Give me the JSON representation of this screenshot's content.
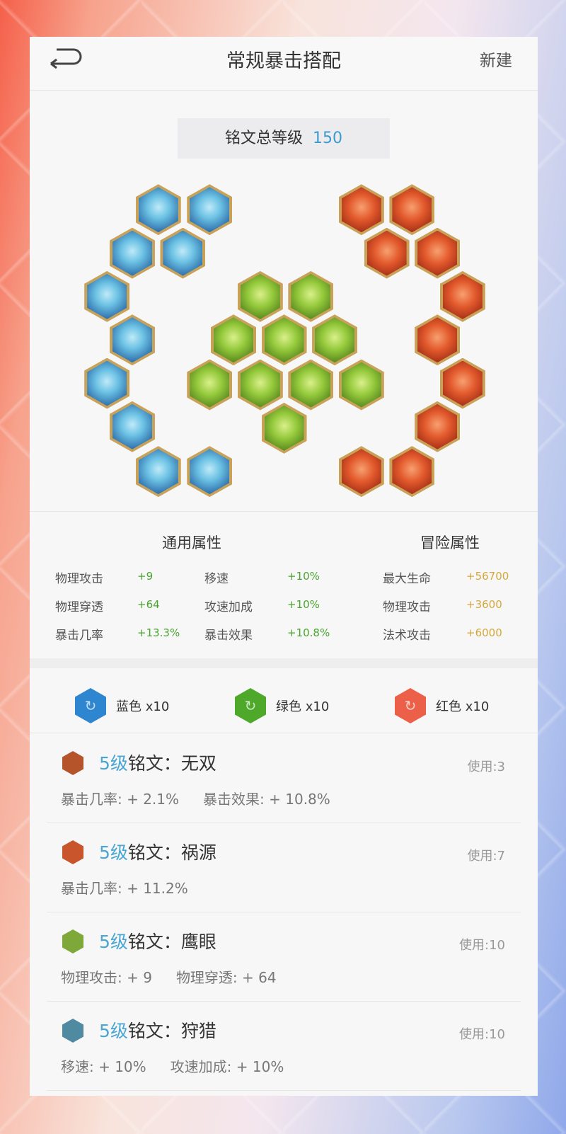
{
  "header": {
    "title": "常规暴击搭配",
    "new_label": "新建",
    "back_icon": "back-arrow-icon"
  },
  "total": {
    "label": "铭文总等级",
    "value": "150"
  },
  "board": {
    "blue_count": 10,
    "green_count": 10,
    "red_count": 10,
    "colors": {
      "blue": "#3b86c4",
      "green": "#7cb83a",
      "red": "#e05a36"
    }
  },
  "general": {
    "title": "通用属性",
    "rows": [
      {
        "l1": "物理攻击",
        "v1": "+9",
        "l2": "移速",
        "v2": "+10%"
      },
      {
        "l1": "物理穿透",
        "v1": "+64",
        "l2": "攻速加成",
        "v2": "+10%"
      },
      {
        "l1": "暴击几率",
        "v1": "+13.3%",
        "l2": "暴击效果",
        "v2": "+10.8%"
      }
    ]
  },
  "adventure": {
    "title": "冒险属性",
    "rows": [
      {
        "l": "最大生命",
        "v": "+56700"
      },
      {
        "l": "物理攻击",
        "v": "+3600"
      },
      {
        "l": "法术攻击",
        "v": "+6000"
      }
    ]
  },
  "color_counts": [
    {
      "label": "蓝色 x10",
      "color": "#2f86d0"
    },
    {
      "label": "绿色 x10",
      "color": "#4ea92a"
    },
    {
      "label": "红色 x10",
      "color": "#ec5f48"
    }
  ],
  "items": [
    {
      "level": "5级",
      "name": "铭文：无双",
      "use": "使用:3",
      "stats": [
        "暴击几率: + 2.1%",
        "暴击效果: + 10.8%"
      ],
      "color": "#b5532a"
    },
    {
      "level": "5级",
      "name": "铭文：祸源",
      "use": "使用:7",
      "stats": [
        "暴击几率: + 11.2%"
      ],
      "color": "#c8552b"
    },
    {
      "level": "5级",
      "name": "铭文：鹰眼",
      "use": "使用:10",
      "stats": [
        "物理攻击: + 9",
        "物理穿透: + 64"
      ],
      "color": "#7ea83a"
    },
    {
      "level": "5级",
      "name": "铭文：狩猎",
      "use": "使用:10",
      "stats": [
        "移速: + 10%",
        "攻速加成: + 10%"
      ],
      "color": "#4f8aa0"
    }
  ]
}
